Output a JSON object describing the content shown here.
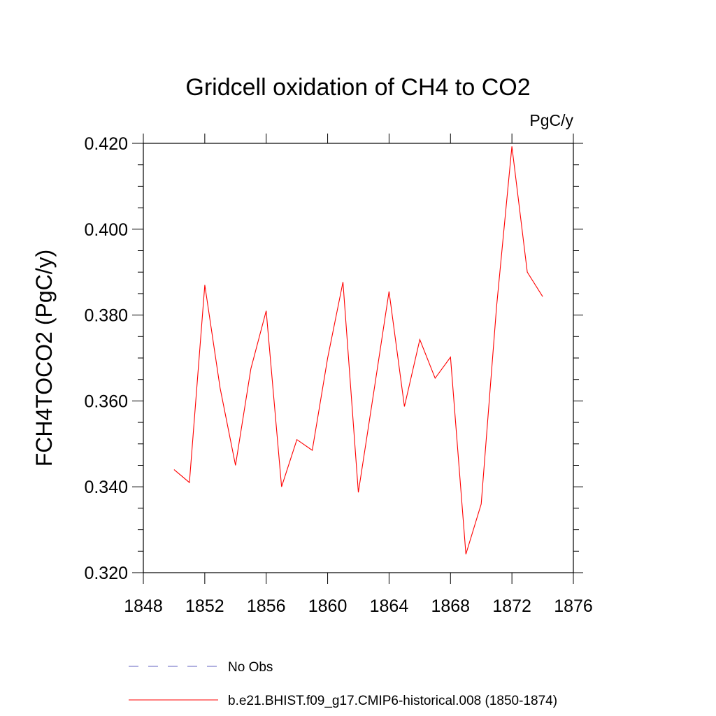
{
  "chart_data": {
    "type": "line",
    "title": "Gridcell oxidation of CH4 to CO2",
    "units": "PgC/y",
    "xlabel": "",
    "ylabel": "FCH4TOCO2  (PgC/y)",
    "xlim": [
      1848,
      1876
    ],
    "ylim": [
      0.32,
      0.42
    ],
    "xticks": [
      1848,
      1852,
      1856,
      1860,
      1864,
      1868,
      1872,
      1876
    ],
    "xtick_labels": [
      "1848",
      "1852",
      "1856",
      "1860",
      "1864",
      "1868",
      "1872",
      "1876"
    ],
    "yticks": [
      0.32,
      0.34,
      0.36,
      0.38,
      0.4,
      0.42
    ],
    "ytick_labels": [
      "0.320",
      "0.340",
      "0.360",
      "0.380",
      "0.400",
      "0.420"
    ],
    "grid": false,
    "legend_position": "bottom",
    "series": [
      {
        "name": "b.e21.BHIST.f09_g17.CMIP6-historical.008 (1850-1874)",
        "color": "#ff0000",
        "style": "solid",
        "x": [
          1850,
          1851,
          1852,
          1853,
          1854,
          1855,
          1856,
          1857,
          1858,
          1859,
          1860,
          1861,
          1862,
          1863,
          1864,
          1865,
          1866,
          1867,
          1868,
          1869,
          1870,
          1871,
          1872,
          1873,
          1874
        ],
        "y": [
          0.344,
          0.341,
          0.387,
          0.363,
          0.345,
          0.3675,
          0.381,
          0.34,
          0.351,
          0.3485,
          0.37,
          0.3877,
          0.3387,
          0.362,
          0.3855,
          0.3587,
          0.3743,
          0.3653,
          0.3702,
          0.3243,
          0.336,
          0.382,
          0.4193,
          0.39,
          0.3843
        ]
      }
    ],
    "legend": [
      {
        "label": "No Obs",
        "color": "#6060c0",
        "style": "dashed"
      },
      {
        "label": "b.e21.BHIST.f09_g17.CMIP6-historical.008 (1850-1874)",
        "color": "#ff0000",
        "style": "solid"
      }
    ]
  }
}
